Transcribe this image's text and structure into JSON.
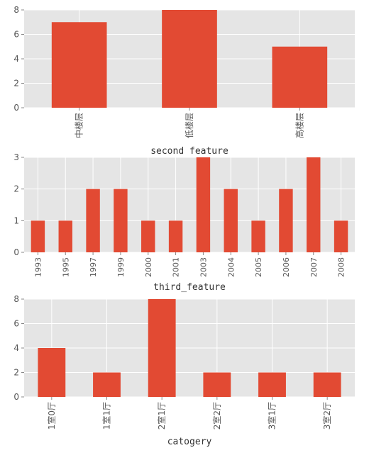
{
  "colors": {
    "bar": "#E24A33",
    "plot_background": "#E5E5E5",
    "grid": "#FFFFFF",
    "tick_text": "#555555",
    "axis_title": "#333333"
  },
  "chart_data": [
    {
      "type": "bar",
      "title": "",
      "xlabel": "second feature",
      "ylabel": "",
      "categories": [
        "中楼层",
        "低楼层",
        "高楼层"
      ],
      "values": [
        7,
        8,
        5
      ],
      "ylim": [
        0,
        8
      ],
      "yticks": [
        0,
        2,
        4,
        6,
        8
      ],
      "grid": true,
      "legend": "none"
    },
    {
      "type": "bar",
      "title": "",
      "xlabel": "third_feature",
      "ylabel": "",
      "categories": [
        "1993",
        "1995",
        "1997",
        "1999",
        "2000",
        "2001",
        "2003",
        "2004",
        "2005",
        "2006",
        "2007",
        "2008"
      ],
      "values": [
        1,
        1,
        2,
        2,
        1,
        1,
        3,
        2,
        1,
        2,
        3,
        1
      ],
      "ylim": [
        0,
        3
      ],
      "yticks": [
        0,
        1,
        2,
        3
      ],
      "grid": true,
      "legend": "none"
    },
    {
      "type": "bar",
      "title": "",
      "xlabel": "catogery",
      "ylabel": "",
      "categories": [
        "1室0厅",
        "1室1厅",
        "2室1厅",
        "2室2厅",
        "3室1厅",
        "3室2厅"
      ],
      "values": [
        4,
        2,
        8,
        2,
        2,
        2
      ],
      "ylim": [
        0,
        8
      ],
      "yticks": [
        0,
        2,
        4,
        6,
        8
      ],
      "grid": true,
      "legend": "none"
    }
  ]
}
